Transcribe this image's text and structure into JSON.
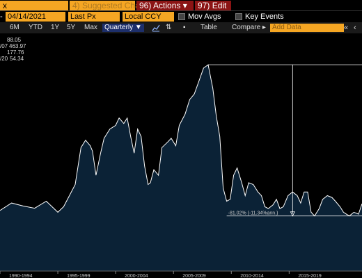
{
  "toolbar": {
    "close_glyph": "x",
    "suggested_charts": "Suggested Charts",
    "suggested_key": "4)",
    "actions_key": "96)",
    "actions": "Actions",
    "edit_key": "97)",
    "edit": "Edit"
  },
  "controls": {
    "dash": "-",
    "date": "04/14/2021",
    "field": "Last Px",
    "currency": "Local CCY",
    "mov_avgs": "Mov Avgs",
    "key_events": "Key Events"
  },
  "ranges": {
    "items": [
      "6M",
      "YTD",
      "1Y",
      "5Y",
      "Max"
    ],
    "period": "Quarterly",
    "table": "Table",
    "compare": "Compare",
    "add_data_placeholder": "Add Data"
  },
  "legend": {
    "rows": [
      {
        "prefix": "",
        "value": "88.05"
      },
      {
        "prefix": "/07",
        "value": "463.97"
      },
      {
        "prefix": "",
        "value": "177.76"
      },
      {
        "prefix": "/20",
        "value": "54.34"
      }
    ]
  },
  "annotation": "-81.02% (-11.34%ann.)",
  "colors": {
    "accent": "#f5a623",
    "area": "#0b2236",
    "line": "#ffffff"
  },
  "chart_data": {
    "type": "area",
    "x_ticks": [
      "1990-1994",
      "1995-1999",
      "2000-2004",
      "2005-2009",
      "2010-2014",
      "2015-2019"
    ],
    "x_range": [
      1990,
      2021.3
    ],
    "ylim": [
      0,
      500
    ],
    "high": 463.97,
    "last": 88.05,
    "series": [
      {
        "values": [
          [
            1990.0,
            70
          ],
          [
            1991.0,
            90
          ],
          [
            1992.0,
            82
          ],
          [
            1993.0,
            76
          ],
          [
            1994.0,
            95
          ],
          [
            1995.0,
            65
          ],
          [
            1995.5,
            80
          ],
          [
            1996.0,
            110
          ],
          [
            1996.5,
            140
          ],
          [
            1997.0,
            240
          ],
          [
            1997.4,
            260
          ],
          [
            1997.8,
            245
          ],
          [
            1998.0,
            230
          ],
          [
            1998.3,
            165
          ],
          [
            1998.7,
            225
          ],
          [
            1999.0,
            265
          ],
          [
            1999.5,
            290
          ],
          [
            2000.0,
            300
          ],
          [
            2000.3,
            320
          ],
          [
            2000.7,
            305
          ],
          [
            2001.0,
            320
          ],
          [
            2001.3,
            270
          ],
          [
            2001.6,
            225
          ],
          [
            2001.9,
            290
          ],
          [
            2002.2,
            270
          ],
          [
            2002.5,
            190
          ],
          [
            2002.8,
            140
          ],
          [
            2003.0,
            145
          ],
          [
            2003.3,
            180
          ],
          [
            2003.7,
            165
          ],
          [
            2004.0,
            240
          ],
          [
            2004.5,
            255
          ],
          [
            2004.8,
            265
          ],
          [
            2005.2,
            245
          ],
          [
            2005.5,
            300
          ],
          [
            2006.0,
            330
          ],
          [
            2006.4,
            370
          ],
          [
            2006.8,
            385
          ],
          [
            2007.2,
            420
          ],
          [
            2007.6,
            455
          ],
          [
            2008.0,
            464
          ],
          [
            2008.4,
            400
          ],
          [
            2008.7,
            325
          ],
          [
            2009.0,
            270
          ],
          [
            2009.3,
            130
          ],
          [
            2009.6,
            95
          ],
          [
            2009.9,
            100
          ],
          [
            2010.2,
            165
          ],
          [
            2010.5,
            185
          ],
          [
            2010.9,
            145
          ],
          [
            2011.2,
            110
          ],
          [
            2011.5,
            145
          ],
          [
            2011.9,
            140
          ],
          [
            2012.3,
            120
          ],
          [
            2012.6,
            110
          ],
          [
            2012.9,
            80
          ],
          [
            2013.2,
            75
          ],
          [
            2013.6,
            85
          ],
          [
            2013.9,
            100
          ],
          [
            2014.2,
            75
          ],
          [
            2014.5,
            80
          ],
          [
            2014.9,
            110
          ],
          [
            2015.3,
            120
          ],
          [
            2015.7,
            110
          ],
          [
            2016.0,
            90
          ],
          [
            2016.3,
            120
          ],
          [
            2016.6,
            120
          ],
          [
            2016.9,
            65
          ],
          [
            2017.2,
            55
          ],
          [
            2017.6,
            75
          ],
          [
            2017.9,
            100
          ],
          [
            2018.3,
            110
          ],
          [
            2018.7,
            105
          ],
          [
            2019.0,
            95
          ],
          [
            2019.4,
            80
          ],
          [
            2019.7,
            65
          ],
          [
            2020.2,
            55
          ],
          [
            2020.6,
            65
          ],
          [
            2021.0,
            60
          ],
          [
            2021.3,
            88
          ]
        ]
      }
    ]
  }
}
